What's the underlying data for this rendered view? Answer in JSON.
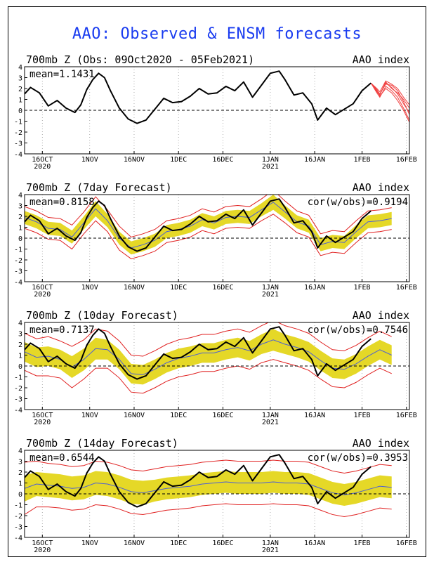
{
  "title": "AAO: Observed & ENSM forecasts",
  "colors": {
    "title": "#1a3cf0",
    "observed": "#000000",
    "spread": "#e5d827",
    "mean": "#4b5fd6",
    "extremes": "#e02020",
    "forecast_members": "#f04040",
    "zero_line": "#000000"
  },
  "x_ticks": [
    {
      "day": 6,
      "label": "16OCT",
      "sub": "2020"
    },
    {
      "day": 22,
      "label": "1NOV",
      "sub": ""
    },
    {
      "day": 37,
      "label": "16NOV",
      "sub": ""
    },
    {
      "day": 52,
      "label": "1DEC",
      "sub": ""
    },
    {
      "day": 67,
      "label": "16DEC",
      "sub": ""
    },
    {
      "day": 83,
      "label": "1JAN",
      "sub": "2021"
    },
    {
      "day": 98,
      "label": "16JAN",
      "sub": ""
    },
    {
      "day": 114,
      "label": "1FEB",
      "sub": ""
    },
    {
      "day": 129,
      "label": "16FEB",
      "sub": ""
    }
  ],
  "y_ticks": [
    -4,
    -3,
    -2,
    -1,
    0,
    1,
    2,
    3,
    4
  ],
  "chart_data": [
    {
      "type": "line",
      "title": "700mb Z (Obs: 09Oct2020 - 05Feb2021)",
      "right_label": "AAO index",
      "mean_label": "mean=1.1431",
      "cor_label": "",
      "ylim": [
        -4,
        4
      ],
      "x_domain_days": [
        0,
        130
      ],
      "observed": {
        "x": [
          0,
          2,
          5,
          8,
          11,
          14,
          17,
          19,
          21,
          23,
          25,
          27,
          29,
          32,
          35,
          38,
          41,
          44,
          47,
          50,
          53,
          56,
          59,
          62,
          65,
          68,
          71,
          74,
          77,
          80,
          83,
          86,
          88,
          91,
          94,
          97,
          99,
          102,
          105,
          108,
          111,
          114,
          117
        ],
        "y": [
          1.5,
          2.1,
          1.6,
          0.4,
          0.9,
          0.2,
          -0.2,
          0.5,
          1.9,
          2.8,
          3.4,
          3.0,
          1.8,
          0.2,
          -0.8,
          -1.2,
          -0.9,
          0.1,
          1.1,
          0.7,
          0.8,
          1.3,
          2.0,
          1.5,
          1.6,
          2.2,
          1.8,
          2.6,
          1.2,
          2.3,
          3.4,
          3.6,
          2.8,
          1.4,
          1.6,
          0.6,
          -0.9,
          0.2,
          -0.4,
          0.1,
          0.6,
          1.8,
          2.5
        ]
      },
      "members": {
        "x": [
          117,
          119,
          120,
          122,
          124,
          126,
          128,
          130
        ],
        "sets": [
          [
            2.5,
            1.7,
            1.4,
            2.6,
            2.0,
            1.6,
            1.0,
            0.2
          ],
          [
            2.5,
            1.9,
            1.5,
            2.4,
            2.3,
            1.8,
            0.8,
            -0.4
          ],
          [
            2.5,
            1.6,
            1.2,
            2.2,
            1.8,
            1.2,
            0.2,
            -0.9
          ],
          [
            2.5,
            2.0,
            1.7,
            2.7,
            2.4,
            2.0,
            1.2,
            0.5
          ],
          [
            2.5,
            1.8,
            1.3,
            2.0,
            1.6,
            0.9,
            0.0,
            -1.1
          ],
          [
            2.5,
            1.7,
            1.5,
            2.5,
            2.1,
            1.5,
            0.6,
            -0.2
          ]
        ]
      }
    },
    {
      "type": "line",
      "title": "700mb Z (7day Forecast)",
      "right_label": "AAO index",
      "mean_label": "mean=0.8158",
      "cor_label": "cor(w/obs)=0.9194",
      "ylim": [
        -4,
        4
      ],
      "x_domain_days": [
        0,
        130
      ],
      "observed_ref": 0,
      "ensemble": {
        "x": [
          0,
          4,
          8,
          12,
          16,
          20,
          24,
          28,
          32,
          36,
          40,
          44,
          48,
          52,
          56,
          60,
          64,
          68,
          72,
          76,
          80,
          84,
          88,
          92,
          96,
          100,
          104,
          108,
          112,
          116,
          120,
          124
        ],
        "mean": [
          1.9,
          1.5,
          0.9,
          0.8,
          0.1,
          1.4,
          2.7,
          1.6,
          0.0,
          -0.9,
          -0.6,
          -0.2,
          0.6,
          0.8,
          1.1,
          1.7,
          1.4,
          1.9,
          2.0,
          1.9,
          2.6,
          3.3,
          2.4,
          1.5,
          1.1,
          -0.6,
          -0.3,
          -0.4,
          0.6,
          1.5,
          1.6,
          1.8
        ],
        "spread_halfwidth": [
          0.6,
          0.6,
          0.6,
          0.6,
          0.6,
          0.6,
          0.7,
          0.6,
          0.6,
          0.6,
          0.6,
          0.6,
          0.6,
          0.6,
          0.6,
          0.6,
          0.6,
          0.6,
          0.6,
          0.6,
          0.6,
          0.7,
          0.6,
          0.6,
          0.6,
          0.6,
          0.6,
          0.6,
          0.6,
          0.6,
          0.6,
          0.6
        ],
        "extreme_halfwidth": [
          1.0,
          1.0,
          1.0,
          1.0,
          1.1,
          1.0,
          1.1,
          1.0,
          1.1,
          1.0,
          1.0,
          1.0,
          1.0,
          1.0,
          1.0,
          1.0,
          1.0,
          1.0,
          1.0,
          1.0,
          1.0,
          1.1,
          1.0,
          1.0,
          1.0,
          1.0,
          1.0,
          1.0,
          1.0,
          1.0,
          1.0,
          1.0
        ]
      }
    },
    {
      "type": "line",
      "title": "700mb Z (10day Forecast)",
      "right_label": "AAO index",
      "mean_label": "mean=0.7137",
      "cor_label": "cor(w/obs)=0.7546",
      "ylim": [
        -4,
        4
      ],
      "x_domain_days": [
        0,
        130
      ],
      "observed_ref": 0,
      "ensemble": {
        "x": [
          0,
          4,
          8,
          12,
          16,
          20,
          24,
          28,
          32,
          36,
          40,
          44,
          48,
          52,
          56,
          60,
          64,
          68,
          72,
          76,
          80,
          84,
          88,
          92,
          96,
          100,
          104,
          108,
          112,
          116,
          120,
          124
        ],
        "mean": [
          1.3,
          0.8,
          0.9,
          0.6,
          -0.1,
          0.6,
          1.6,
          1.5,
          0.6,
          -0.7,
          -0.8,
          -0.3,
          0.3,
          0.7,
          0.9,
          1.2,
          1.2,
          1.5,
          1.7,
          1.4,
          2.0,
          2.4,
          2.0,
          1.7,
          1.3,
          0.5,
          -0.2,
          -0.3,
          0.2,
          0.9,
          1.5,
          1.0
        ],
        "spread_halfwidth": [
          0.9,
          0.9,
          0.9,
          0.9,
          1.0,
          1.0,
          1.0,
          0.9,
          0.9,
          0.9,
          0.9,
          0.9,
          0.9,
          0.9,
          0.9,
          0.9,
          0.9,
          0.9,
          0.9,
          0.9,
          0.9,
          1.0,
          0.9,
          0.9,
          0.9,
          0.9,
          0.9,
          0.9,
          0.9,
          0.9,
          0.9,
          0.9
        ],
        "extreme_halfwidth": [
          1.7,
          1.7,
          1.8,
          1.7,
          1.9,
          1.8,
          1.8,
          1.7,
          1.7,
          1.7,
          1.7,
          1.7,
          1.7,
          1.7,
          1.7,
          1.7,
          1.7,
          1.7,
          1.7,
          1.7,
          1.7,
          1.8,
          1.7,
          1.7,
          1.7,
          1.7,
          1.7,
          1.7,
          1.7,
          1.7,
          1.7,
          1.7
        ]
      }
    },
    {
      "type": "line",
      "title": "700mb Z (14day Forecast)",
      "right_label": "AAO index",
      "mean_label": "mean=0.6544",
      "cor_label": "cor(w/obs)=0.3953",
      "ylim": [
        -4,
        4
      ],
      "x_domain_days": [
        0,
        130
      ],
      "observed_ref": 0,
      "ensemble": {
        "x": [
          0,
          4,
          8,
          12,
          16,
          20,
          24,
          28,
          32,
          36,
          40,
          44,
          48,
          52,
          56,
          60,
          64,
          68,
          72,
          76,
          80,
          84,
          88,
          92,
          96,
          100,
          104,
          108,
          112,
          116,
          120,
          124
        ],
        "mean": [
          0.5,
          0.9,
          0.8,
          0.7,
          0.5,
          0.6,
          1.0,
          0.9,
          0.6,
          0.2,
          0.1,
          0.3,
          0.5,
          0.6,
          0.7,
          0.9,
          1.0,
          1.1,
          1.0,
          1.0,
          1.0,
          1.1,
          1.0,
          1.0,
          0.9,
          0.5,
          0.1,
          -0.1,
          0.1,
          0.4,
          0.7,
          0.6
        ],
        "spread_halfwidth": [
          1.2,
          1.1,
          1.1,
          1.1,
          1.1,
          1.1,
          1.1,
          1.1,
          1.1,
          1.1,
          1.1,
          1.0,
          1.0,
          1.0,
          1.0,
          1.0,
          1.0,
          1.0,
          1.0,
          1.0,
          1.0,
          1.0,
          1.0,
          1.0,
          1.0,
          1.0,
          1.0,
          1.0,
          1.0,
          1.0,
          1.0,
          1.0
        ],
        "extreme_halfwidth": [
          2.4,
          2.1,
          2.0,
          2.0,
          2.0,
          2.0,
          2.0,
          2.0,
          2.0,
          2.0,
          2.0,
          2.0,
          2.0,
          2.0,
          2.0,
          2.0,
          2.0,
          2.0,
          2.0,
          2.0,
          2.0,
          2.0,
          2.0,
          2.0,
          2.0,
          2.0,
          2.0,
          2.0,
          2.0,
          2.0,
          2.0,
          2.0
        ]
      }
    }
  ]
}
